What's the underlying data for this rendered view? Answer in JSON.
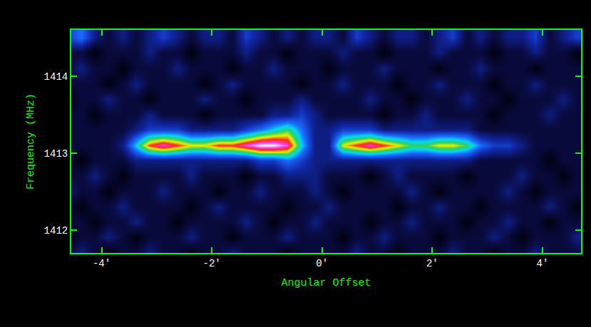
{
  "chart_data": {
    "type": "heatmap",
    "x_label": "Angular Offset",
    "y_label": "Frequency (MHz)",
    "grid": false,
    "xlim": [
      -4.55,
      4.7
    ],
    "ylim": [
      1411.7,
      1414.6
    ],
    "xticks": [
      {
        "value": -4,
        "label": "-4'"
      },
      {
        "value": -2,
        "label": "-2'"
      },
      {
        "value": 0,
        "label": "0'"
      },
      {
        "value": 2,
        "label": "2'"
      },
      {
        "value": 4,
        "label": "4'"
      }
    ],
    "yticks": [
      1412,
      1413,
      1414
    ],
    "zlim": [
      0,
      10
    ],
    "x": [
      -4.625,
      -4.375,
      -4.125,
      -3.875,
      -3.625,
      -3.375,
      -3.125,
      -2.875,
      -2.625,
      -2.375,
      -2.125,
      -1.875,
      -1.625,
      -1.375,
      -1.125,
      -0.875,
      -0.625,
      -0.375,
      -0.125,
      0.125,
      0.375,
      0.625,
      0.875,
      1.125,
      1.375,
      1.625,
      1.875,
      2.125,
      2.375,
      2.625,
      2.875,
      3.125,
      3.375,
      3.625,
      3.875,
      4.125,
      4.375,
      4.625
    ],
    "y": [
      1411.7,
      1411.9,
      1412.1,
      1412.3,
      1412.5,
      1412.7,
      1412.9,
      1413.1,
      1413.3,
      1413.5,
      1413.7,
      1413.9,
      1414.1,
      1414.3,
      1414.5
    ],
    "z": [
      [
        1,
        2,
        1,
        0,
        1,
        1,
        2,
        1,
        1,
        0,
        1,
        1,
        2,
        1,
        1,
        1,
        0,
        1,
        1,
        1,
        1,
        2,
        1,
        1,
        0,
        1,
        1,
        1,
        2,
        1,
        1,
        0,
        1,
        1,
        2,
        1,
        1,
        1
      ],
      [
        0,
        1,
        1,
        2,
        1,
        0,
        1,
        1,
        1,
        2,
        1,
        1,
        0,
        1,
        1,
        1,
        2,
        1,
        1,
        1,
        0,
        1,
        1,
        2,
        1,
        1,
        1,
        0,
        1,
        1,
        1,
        2,
        1,
        0,
        1,
        1,
        1,
        2
      ],
      [
        1,
        1,
        0,
        1,
        1,
        2,
        1,
        1,
        0,
        1,
        1,
        1,
        1,
        2,
        1,
        0,
        1,
        1,
        2,
        1,
        1,
        1,
        0,
        1,
        1,
        2,
        1,
        1,
        1,
        0,
        1,
        1,
        2,
        1,
        1,
        0,
        1,
        1
      ],
      [
        1,
        0,
        1,
        1,
        2,
        1,
        1,
        1,
        1,
        0,
        1,
        2,
        1,
        1,
        1,
        1,
        0,
        1,
        1,
        2,
        1,
        1,
        1,
        1,
        0,
        1,
        1,
        2,
        1,
        1,
        0,
        1,
        1,
        1,
        1,
        2,
        1,
        0
      ],
      [
        2,
        1,
        1,
        0,
        1,
        1,
        1,
        2,
        1,
        1,
        1,
        0,
        1,
        1,
        2,
        1,
        1,
        1,
        2,
        1,
        0,
        1,
        1,
        1,
        1,
        2,
        1,
        0,
        1,
        1,
        1,
        1,
        2,
        1,
        0,
        1,
        1,
        1
      ],
      [
        1,
        1,
        2,
        1,
        0,
        1,
        1,
        1,
        1,
        2,
        1,
        1,
        1,
        0,
        1,
        1,
        2,
        2,
        2,
        1,
        1,
        1,
        0,
        1,
        2,
        1,
        1,
        1,
        1,
        0,
        1,
        1,
        1,
        2,
        1,
        1,
        0,
        1
      ],
      [
        1,
        0,
        1,
        1,
        1,
        2,
        2,
        2,
        2,
        2,
        2,
        2,
        2,
        2,
        3,
        3,
        4,
        3,
        2,
        2,
        2,
        2,
        2,
        2,
        2,
        2,
        2,
        2,
        2,
        2,
        1,
        1,
        1,
        1,
        1,
        0,
        1,
        1
      ],
      [
        1,
        1,
        1,
        1,
        2,
        5,
        8,
        9,
        8,
        7,
        7,
        8,
        8,
        9,
        10,
        10,
        9,
        5,
        2,
        2,
        7,
        8,
        9,
        8,
        7,
        6,
        6,
        7,
        7,
        6,
        4,
        3,
        3,
        2,
        1,
        1,
        1,
        1
      ],
      [
        1,
        1,
        1,
        1,
        1,
        2,
        3,
        3,
        3,
        2,
        2,
        2,
        2,
        3,
        4,
        5,
        6,
        4,
        2,
        2,
        3,
        3,
        3,
        2,
        2,
        2,
        2,
        2,
        2,
        2,
        1,
        1,
        1,
        1,
        1,
        1,
        1,
        1
      ],
      [
        1,
        1,
        0,
        1,
        1,
        1,
        2,
        1,
        1,
        1,
        0,
        1,
        1,
        1,
        1,
        2,
        2,
        3,
        2,
        1,
        1,
        1,
        1,
        0,
        1,
        1,
        2,
        1,
        1,
        1,
        1,
        0,
        1,
        1,
        1,
        2,
        1,
        1
      ],
      [
        0,
        1,
        1,
        2,
        1,
        1,
        0,
        1,
        1,
        1,
        2,
        1,
        1,
        0,
        1,
        1,
        1,
        2,
        1,
        1,
        1,
        1,
        2,
        1,
        1,
        0,
        1,
        1,
        1,
        2,
        1,
        1,
        0,
        1,
        1,
        1,
        2,
        1
      ],
      [
        1,
        1,
        1,
        0,
        1,
        2,
        1,
        1,
        1,
        1,
        0,
        1,
        2,
        1,
        1,
        1,
        1,
        0,
        1,
        1,
        2,
        1,
        1,
        1,
        0,
        1,
        1,
        2,
        1,
        1,
        1,
        0,
        1,
        1,
        2,
        1,
        1,
        1
      ],
      [
        1,
        2,
        1,
        1,
        0,
        1,
        1,
        1,
        2,
        1,
        1,
        1,
        0,
        1,
        1,
        2,
        1,
        1,
        1,
        0,
        1,
        1,
        1,
        2,
        1,
        1,
        1,
        0,
        1,
        1,
        2,
        1,
        1,
        1,
        0,
        1,
        1,
        1
      ],
      [
        1,
        1,
        0,
        1,
        1,
        1,
        2,
        1,
        1,
        0,
        1,
        1,
        1,
        2,
        1,
        1,
        0,
        1,
        1,
        1,
        2,
        1,
        1,
        0,
        1,
        1,
        1,
        2,
        1,
        1,
        1,
        0,
        1,
        1,
        2,
        1,
        1,
        0
      ],
      [
        3,
        4,
        2,
        1,
        2,
        1,
        2,
        3,
        2,
        1,
        2,
        2,
        1,
        3,
        2,
        1,
        2,
        1,
        2,
        2,
        1,
        3,
        2,
        1,
        2,
        2,
        1,
        2,
        3,
        1,
        2,
        1,
        2,
        2,
        3,
        1,
        2,
        3
      ]
    ]
  }
}
